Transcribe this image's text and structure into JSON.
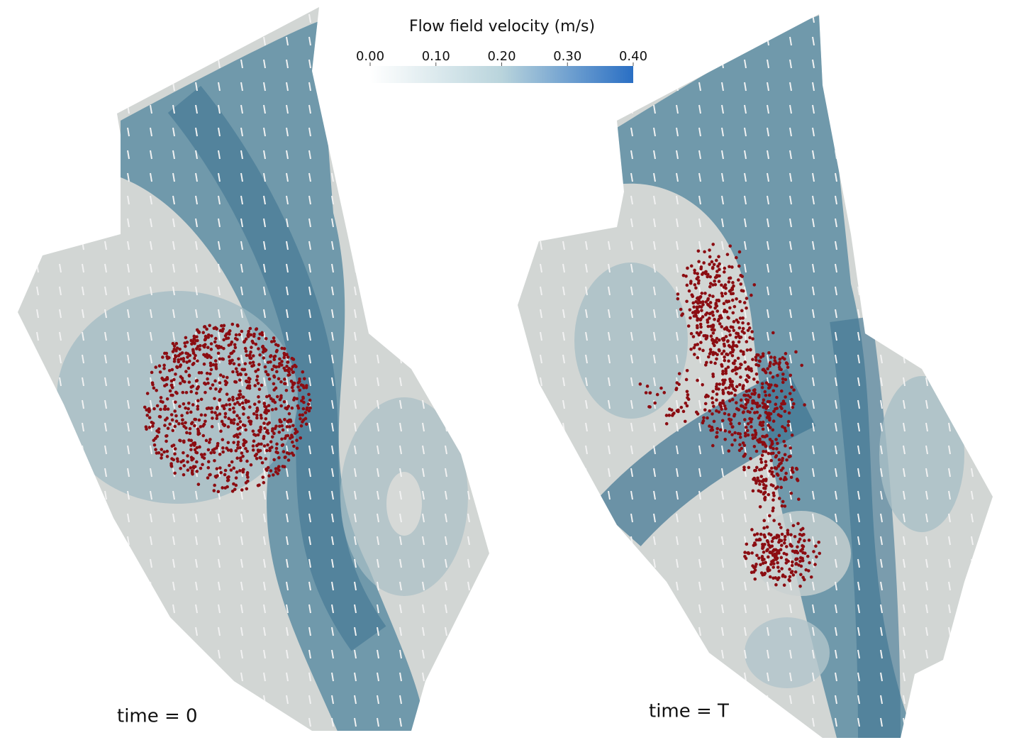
{
  "colorbar": {
    "title": "Flow field velocity (m/s)",
    "lim": [
      0,
      0.4
    ],
    "ticks": [
      {
        "value": 0,
        "label": "0.00"
      },
      {
        "value": 0.1,
        "label": "0.10"
      },
      {
        "value": 0.2,
        "label": "0.20"
      },
      {
        "value": 0.3,
        "label": "0.30"
      },
      {
        "value": 0.4,
        "label": "0.40"
      }
    ],
    "colors": [
      "#ffffff",
      "#b9d4dc",
      "#2a6fc4"
    ]
  },
  "panels": [
    {
      "label": "time = 0"
    },
    {
      "label": "time = T"
    }
  ]
}
